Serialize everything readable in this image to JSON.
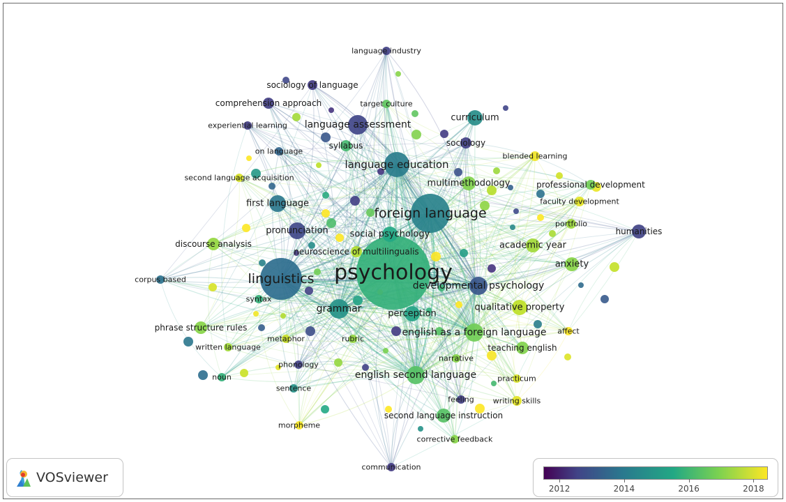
{
  "app": {
    "name": "VOSviewer"
  },
  "colors": {
    "c2012": "#46337e",
    "c2013": "#3f4a8a",
    "c2014": "#2c728e",
    "c2015": "#22a884",
    "c2016": "#7ad151",
    "c2017": "#bddf26",
    "c2018": "#fde725"
  },
  "scale": {
    "min": 2011.5,
    "max": 2018.4,
    "ticks": [
      "2012",
      "2014",
      "2016",
      "2018"
    ]
  },
  "terms": [
    {
      "id": "psychology",
      "label": "psychology",
      "weight": 10,
      "year": 2015.2
    },
    {
      "id": "foreign-language",
      "label": "foreign language",
      "weight": 5.2,
      "year": 2014.3
    },
    {
      "id": "linguistics",
      "label": "linguistics",
      "weight": 5.6,
      "year": 2013.9
    },
    {
      "id": "language-education",
      "label": "language education",
      "weight": 3.4,
      "year": 2014.2
    },
    {
      "id": "language-assessment",
      "label": "language assessment",
      "weight": 2.6,
      "year": 2012.8
    },
    {
      "id": "grammar",
      "label": "grammar",
      "weight": 2.6,
      "year": 2014.6
    },
    {
      "id": "developmental-psychology",
      "label": "developmental psychology",
      "weight": 2.4,
      "year": 2013.3
    },
    {
      "id": "english-second-language",
      "label": "english second language",
      "weight": 2.5,
      "year": 2015.6
    },
    {
      "id": "english-as-a-foreign-language",
      "label": "english as a foreign language",
      "weight": 2.4,
      "year": 2015.9
    },
    {
      "id": "first-language",
      "label": "first language",
      "weight": 2.3,
      "year": 2014.1
    },
    {
      "id": "pronunciation",
      "label": "pronunciation",
      "weight": 2.2,
      "year": 2012.9
    },
    {
      "id": "social-psychology",
      "label": "social psychology",
      "weight": 2.1,
      "year": 2015.0
    },
    {
      "id": "curriculum",
      "label": "curriculum",
      "weight": 2.1,
      "year": 2014.5
    },
    {
      "id": "qualitative-property",
      "label": "qualitative property",
      "weight": 2.0,
      "year": 2017.0
    },
    {
      "id": "perception",
      "label": "perception",
      "weight": 2.0,
      "year": 2014.9
    },
    {
      "id": "multimethodology",
      "label": "multimethodology",
      "weight": 1.9,
      "year": 2016.1
    },
    {
      "id": "academic-year",
      "label": "academic year",
      "weight": 1.9,
      "year": 2016.6
    },
    {
      "id": "anxiety",
      "label": "anxiety",
      "weight": 1.9,
      "year": 2016.2
    },
    {
      "id": "humanities",
      "label": "humanities",
      "weight": 1.8,
      "year": 2012.7
    },
    {
      "id": "second-language-instruction",
      "label": "second language instruction",
      "weight": 1.8,
      "year": 2015.6
    },
    {
      "id": "teaching-english",
      "label": "teaching english",
      "weight": 1.7,
      "year": 2016.1
    },
    {
      "id": "phrase-structure-rules",
      "label": "phrase structure rules",
      "weight": 1.7,
      "year": 2016.2
    },
    {
      "id": "discourse-analysis",
      "label": "discourse analysis",
      "weight": 1.7,
      "year": 2016.4
    },
    {
      "id": "neuroscience-of-multilingualis",
      "label": "neuroscience of multilingualis",
      "weight": 1.6,
      "year": 2016.8
    },
    {
      "id": "sociology",
      "label": "sociology",
      "weight": 1.6,
      "year": 2012.6
    },
    {
      "id": "syllabus",
      "label": "syllabus",
      "weight": 1.5,
      "year": 2015.4
    },
    {
      "id": "comprehension-approach",
      "label": "comprehension approach",
      "weight": 1.5,
      "year": 2012.5
    },
    {
      "id": "sociology-of-language",
      "label": "sociology of language",
      "weight": 1.4,
      "year": 2012.4
    },
    {
      "id": "professional-development",
      "label": "professional development",
      "weight": 1.4,
      "year": 2015.9
    },
    {
      "id": "faculty-development",
      "label": "faculty development",
      "weight": 1.3,
      "year": 2017.6
    },
    {
      "id": "blended-learning",
      "label": "blended learning",
      "weight": 1.3,
      "year": 2017.8
    },
    {
      "id": "portfolio",
      "label": "portfolio",
      "weight": 1.3,
      "year": 2016.5
    },
    {
      "id": "writing-skills",
      "label": "writing skills",
      "weight": 1.3,
      "year": 2017.6
    },
    {
      "id": "practicum",
      "label": "practicum",
      "weight": 1.2,
      "year": 2017.4
    },
    {
      "id": "narrative",
      "label": "narrative",
      "weight": 1.2,
      "year": 2016.2
    },
    {
      "id": "rubric",
      "label": "rubric",
      "weight": 1.2,
      "year": 2016.4
    },
    {
      "id": "syntax",
      "label": "syntax",
      "weight": 1.2,
      "year": 2015.2
    },
    {
      "id": "written-language",
      "label": "written language",
      "weight": 1.2,
      "year": 2016.6
    },
    {
      "id": "on-language",
      "label": "on language",
      "weight": 1.2,
      "year": 2013.7
    },
    {
      "id": "second-language-acquisition",
      "label": "second language acquisition",
      "weight": 1.2,
      "year": 2017.4
    },
    {
      "id": "target-culture",
      "label": "target culture",
      "weight": 1.1,
      "year": 2015.7
    },
    {
      "id": "experiential-learning",
      "label": "experiential learning",
      "weight": 1.1,
      "year": 2012.5
    },
    {
      "id": "language-industry",
      "label": "language industry",
      "weight": 1.1,
      "year": 2012.6
    },
    {
      "id": "corpus-based",
      "label": "corpus based",
      "weight": 1.1,
      "year": 2014.0
    },
    {
      "id": "metaphor",
      "label": "metaphor",
      "weight": 1.1,
      "year": 2017.2
    },
    {
      "id": "phonology",
      "label": "phonology",
      "weight": 1.1,
      "year": 2012.6
    },
    {
      "id": "noun",
      "label": "noun",
      "weight": 1.1,
      "year": 2015.2
    },
    {
      "id": "sentence",
      "label": "sentence",
      "weight": 1.1,
      "year": 2014.6
    },
    {
      "id": "morpheme",
      "label": "morpheme",
      "weight": 1.1,
      "year": 2017.9
    },
    {
      "id": "feeling",
      "label": "feeling",
      "weight": 1.1,
      "year": 2012.6
    },
    {
      "id": "affect",
      "label": "affect",
      "weight": 1.1,
      "year": 2018.0
    },
    {
      "id": "corrective-feedback",
      "label": "corrective feedback",
      "weight": 1.1,
      "year": 2016.2
    },
    {
      "id": "communication",
      "label": "communication",
      "weight": 1.1,
      "year": 2012.4
    }
  ]
}
